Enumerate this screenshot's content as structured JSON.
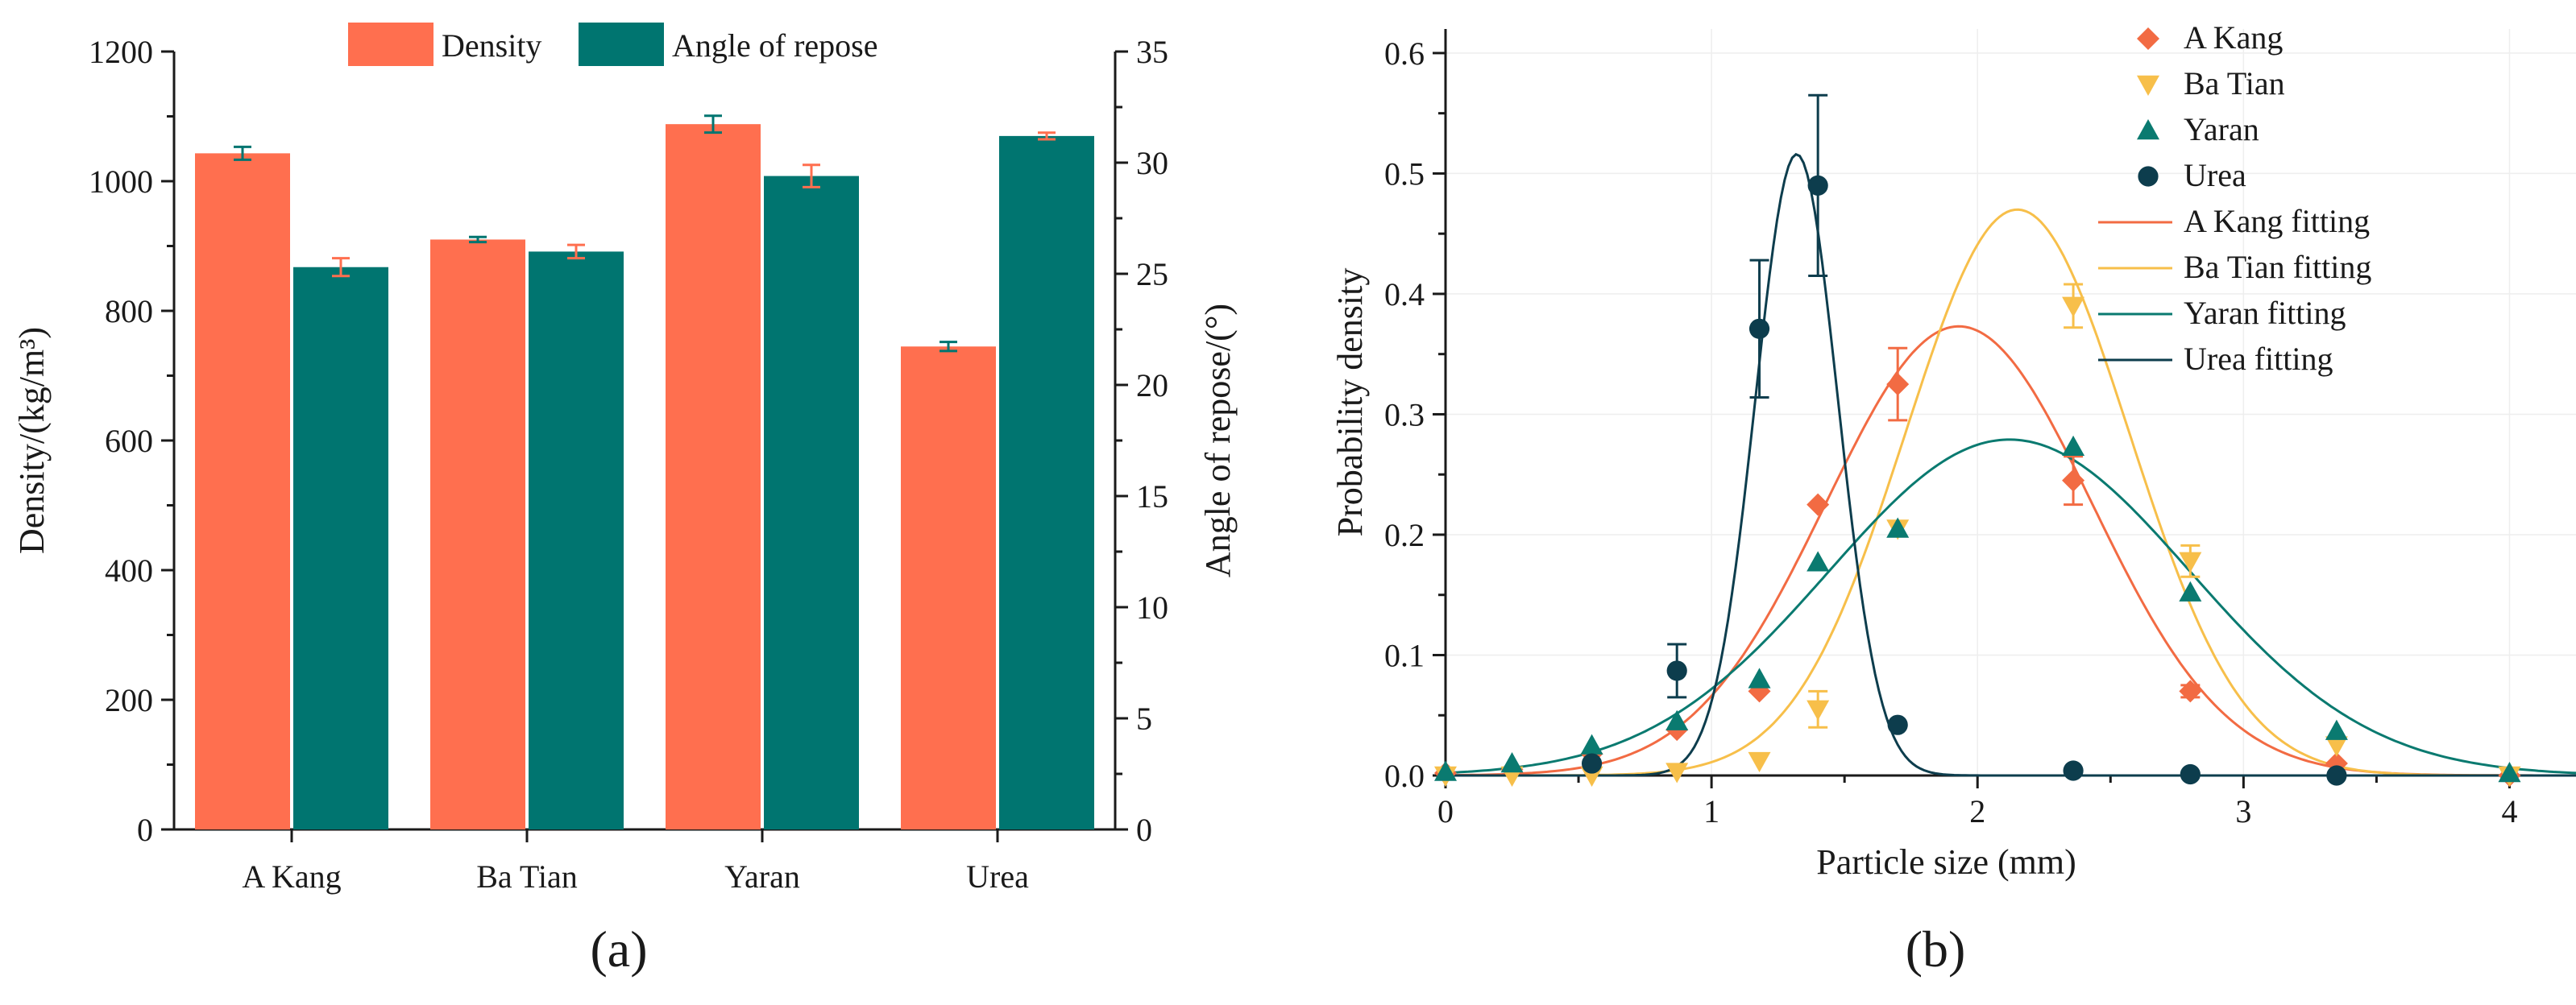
{
  "panel_a_label": "(a)",
  "panel_b_label": "(b)",
  "colors": {
    "density": "#ff6f4f",
    "angle": "#007570",
    "a_kang": "#f26b43",
    "ba_tian": "#f7bf4a",
    "yaran": "#0a7a70",
    "urea": "#0d3d4d",
    "axis": "#1a1a1a"
  },
  "chart_data": [
    {
      "type": "bar",
      "title": "",
      "categories": [
        "A Kang",
        "Ba Tian",
        "Yaran",
        "Urea"
      ],
      "xlabel": "",
      "ylabel": "Density/(kg/m³)",
      "y2label": "Angle of repose/(°)",
      "ylim": [
        0,
        1200
      ],
      "y2lim": [
        0,
        35
      ],
      "yticks": [
        "0",
        "200",
        "400",
        "600",
        "800",
        "1000",
        "1200"
      ],
      "y2ticks": [
        "0",
        "5",
        "10",
        "15",
        "20",
        "25",
        "30",
        "35"
      ],
      "legend_position": "top",
      "series": [
        {
          "name": "Density",
          "axis": "left",
          "values": [
            1043,
            910,
            1088,
            745
          ],
          "errors": [
            10,
            4,
            13,
            7
          ]
        },
        {
          "name": "Angle of repose",
          "axis": "right",
          "values": [
            25.3,
            26.0,
            29.4,
            31.2
          ],
          "errors": [
            0.4,
            0.3,
            0.5,
            0.15
          ]
        }
      ]
    },
    {
      "type": "scatter",
      "title": "",
      "xlabel": "Particle size (mm)",
      "ylabel": "Probability density",
      "xlim": [
        0,
        4.25
      ],
      "ylim": [
        0,
        0.62
      ],
      "xticks": [
        "0",
        "1",
        "2",
        "3",
        "4"
      ],
      "yticks": [
        "0.0",
        "0.1",
        "0.2",
        "0.3",
        "0.4",
        "0.5",
        "0.6"
      ],
      "legend_position": "top-right",
      "series": [
        {
          "name": "A Kang",
          "marker": "diamond",
          "x": [
            0,
            0.25,
            0.55,
            0.87,
            1.18,
            1.4,
            1.7,
            2.36,
            2.8,
            3.35,
            4.0
          ],
          "y": [
            0.002,
            0.005,
            0.018,
            0.038,
            0.07,
            0.225,
            0.325,
            0.245,
            0.07,
            0.01,
            0.0
          ],
          "errors": [
            0,
            0,
            0,
            0,
            0,
            0,
            0.03,
            0.02,
            0.005,
            0,
            0
          ]
        },
        {
          "name": "Ba Tian",
          "marker": "triangle-down",
          "x": [
            0,
            0.25,
            0.55,
            0.87,
            1.18,
            1.4,
            1.7,
            2.36,
            2.8,
            3.35,
            4.0
          ],
          "y": [
            0.0,
            0.0,
            0.0,
            0.003,
            0.012,
            0.055,
            0.205,
            0.39,
            0.178,
            0.025,
            0.0
          ],
          "errors": [
            0,
            0,
            0,
            0,
            0,
            0.015,
            0,
            0.018,
            0.013,
            0,
            0
          ]
        },
        {
          "name": "Yaran",
          "marker": "triangle-up",
          "x": [
            0,
            0.25,
            0.55,
            0.87,
            1.18,
            1.4,
            1.7,
            2.36,
            2.8,
            3.35,
            4.0
          ],
          "y": [
            0.003,
            0.01,
            0.025,
            0.045,
            0.08,
            0.177,
            0.205,
            0.273,
            0.152,
            0.037,
            0.002
          ],
          "errors": [
            0,
            0,
            0,
            0,
            0,
            0,
            0,
            0,
            0,
            0,
            0
          ]
        },
        {
          "name": "Urea",
          "marker": "circle",
          "x": [
            0.55,
            0.87,
            1.18,
            1.4,
            1.7,
            2.36,
            2.8,
            3.35
          ],
          "y": [
            0.01,
            0.087,
            0.371,
            0.49,
            0.042,
            0.004,
            0.001,
            0.0
          ],
          "errors": [
            0,
            0.022,
            0.057,
            0.075,
            0,
            0,
            0,
            0
          ]
        }
      ],
      "fits": [
        {
          "name": "A Kang fitting",
          "mu": 1.93,
          "sigma": 0.5,
          "amplitude": 0.373
        },
        {
          "name": "Ba Tian fitting",
          "mu": 2.15,
          "sigma": 0.42,
          "amplitude": 0.47
        },
        {
          "name": "Yaran fitting",
          "mu": 2.12,
          "sigma": 0.68,
          "amplitude": 0.279
        },
        {
          "name": "Urea fitting",
          "mu": 1.32,
          "sigma": 0.155,
          "amplitude": 0.516
        }
      ]
    }
  ]
}
